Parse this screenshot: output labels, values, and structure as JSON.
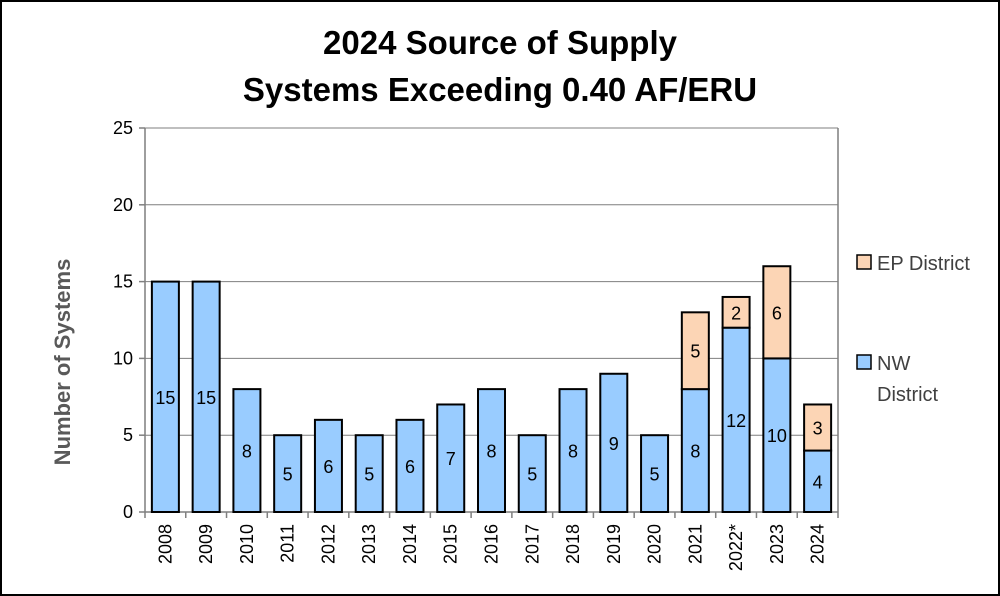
{
  "chart_data": {
    "type": "bar",
    "stacked": true,
    "title": "2024 Source of Supply",
    "subtitle": "Systems Exceeding 0.40 AF/ERU",
    "xlabel": "",
    "ylabel": "Number of Systems",
    "ylim": [
      0,
      25
    ],
    "yticks": [
      0,
      5,
      10,
      15,
      20,
      25
    ],
    "grid": true,
    "legend_position": "right",
    "categories": [
      "2008",
      "2009",
      "2010",
      "2011",
      "2012",
      "2013",
      "2014",
      "2015",
      "2016",
      "2017",
      "2018",
      "2019",
      "2020",
      "2021",
      "2022*",
      "2023",
      "2024"
    ],
    "series": [
      {
        "name": "NW District",
        "color": "#99ccff",
        "values": [
          15,
          15,
          8,
          5,
          6,
          5,
          6,
          7,
          8,
          5,
          8,
          9,
          5,
          8,
          12,
          10,
          4
        ]
      },
      {
        "name": "EP District",
        "color": "#fcd5b5",
        "values": [
          0,
          0,
          0,
          0,
          0,
          0,
          0,
          0,
          0,
          0,
          0,
          0,
          0,
          5,
          2,
          6,
          3
        ]
      }
    ],
    "legend": [
      {
        "series": 1,
        "lines": [
          "EP District"
        ]
      },
      {
        "series": 0,
        "lines": [
          "NW",
          "District"
        ]
      }
    ]
  }
}
